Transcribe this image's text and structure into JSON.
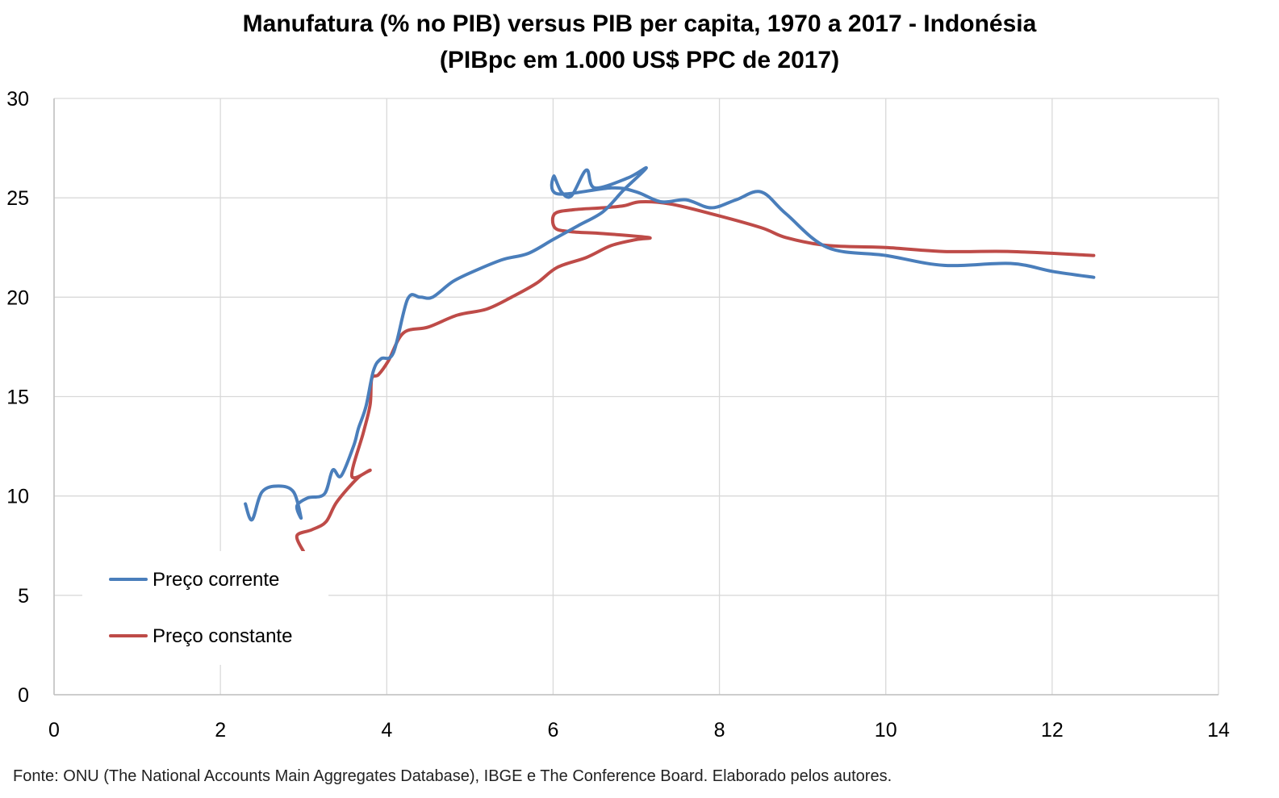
{
  "chart_data": {
    "type": "line",
    "title": "Manufatura (% no PIB) versus PIB per capita, 1970 a 2017 - Indonésia",
    "subtitle": "(PIBpc em 1.000 US$ PPC de 2017)",
    "xlabel": "",
    "ylabel": "",
    "xlim": [
      0,
      14
    ],
    "ylim": [
      0,
      30
    ],
    "xticks": [
      "0",
      "2",
      "4",
      "6",
      "8",
      "10",
      "12",
      "14"
    ],
    "yticks": [
      "0",
      "5",
      "10",
      "15",
      "20",
      "25",
      "30"
    ],
    "grid": true,
    "legend_position": "lower-left",
    "series": [
      {
        "name": "Preço corrente",
        "color": "#4a7ebb",
        "points": [
          [
            2.3,
            9.6
          ],
          [
            2.38,
            8.8
          ],
          [
            2.5,
            10.2
          ],
          [
            2.7,
            10.5
          ],
          [
            2.88,
            10.2
          ],
          [
            2.97,
            8.9
          ],
          [
            2.92,
            9.5
          ],
          [
            3.05,
            9.9
          ],
          [
            3.25,
            10.1
          ],
          [
            3.35,
            11.3
          ],
          [
            3.45,
            11.0
          ],
          [
            3.6,
            12.5
          ],
          [
            3.66,
            13.4
          ],
          [
            3.75,
            14.5
          ],
          [
            3.84,
            16.3
          ],
          [
            3.93,
            16.9
          ],
          [
            4.08,
            17.2
          ],
          [
            4.25,
            19.9
          ],
          [
            4.4,
            20.0
          ],
          [
            4.55,
            20.0
          ],
          [
            4.8,
            20.8
          ],
          [
            5.1,
            21.4
          ],
          [
            5.4,
            21.9
          ],
          [
            5.7,
            22.2
          ],
          [
            6.0,
            22.9
          ],
          [
            6.3,
            23.6
          ],
          [
            6.6,
            24.3
          ],
          [
            6.85,
            25.4
          ],
          [
            7.12,
            26.5
          ],
          [
            6.9,
            26.0
          ],
          [
            6.5,
            25.5
          ],
          [
            6.4,
            26.4
          ],
          [
            6.22,
            25.1
          ],
          [
            6.1,
            25.3
          ],
          [
            6.01,
            26.1
          ],
          [
            6.05,
            25.2
          ],
          [
            6.7,
            25.5
          ],
          [
            7.0,
            25.3
          ],
          [
            7.3,
            24.8
          ],
          [
            7.6,
            24.9
          ],
          [
            7.9,
            24.5
          ],
          [
            8.2,
            24.9
          ],
          [
            8.5,
            25.3
          ],
          [
            8.8,
            24.2
          ],
          [
            9.3,
            22.5
          ],
          [
            10.0,
            22.1
          ],
          [
            10.7,
            21.6
          ],
          [
            11.5,
            21.7
          ],
          [
            12.0,
            21.3
          ],
          [
            12.5,
            21.0
          ]
        ]
      },
      {
        "name": "Preço constante",
        "color": "#be4b48",
        "points": [
          [
            3.0,
            7.2
          ],
          [
            2.92,
            8.0
          ],
          [
            3.1,
            8.3
          ],
          [
            3.27,
            8.7
          ],
          [
            3.4,
            9.7
          ],
          [
            3.65,
            10.9
          ],
          [
            3.8,
            11.3
          ],
          [
            3.58,
            11.0
          ],
          [
            3.72,
            13.2
          ],
          [
            3.8,
            14.6
          ],
          [
            3.82,
            15.9
          ],
          [
            3.9,
            16.1
          ],
          [
            4.02,
            16.8
          ],
          [
            4.2,
            18.2
          ],
          [
            4.5,
            18.5
          ],
          [
            4.85,
            19.1
          ],
          [
            5.2,
            19.4
          ],
          [
            5.5,
            20.0
          ],
          [
            5.8,
            20.7
          ],
          [
            6.05,
            21.5
          ],
          [
            6.4,
            22.0
          ],
          [
            6.7,
            22.6
          ],
          [
            7.0,
            22.9
          ],
          [
            7.15,
            23.0
          ],
          [
            6.6,
            23.2
          ],
          [
            6.2,
            23.3
          ],
          [
            6.02,
            23.5
          ],
          [
            6.02,
            24.2
          ],
          [
            6.25,
            24.4
          ],
          [
            6.6,
            24.5
          ],
          [
            6.85,
            24.6
          ],
          [
            7.05,
            24.8
          ],
          [
            7.4,
            24.7
          ],
          [
            7.9,
            24.2
          ],
          [
            8.5,
            23.5
          ],
          [
            8.8,
            23.0
          ],
          [
            9.3,
            22.6
          ],
          [
            10.0,
            22.5
          ],
          [
            10.7,
            22.3
          ],
          [
            11.5,
            22.3
          ],
          [
            12.5,
            22.1
          ]
        ]
      }
    ]
  },
  "source": "Fonte: ONU (The National Accounts Main Aggregates Database), IBGE e The Conference Board. Elaborado pelos autores."
}
